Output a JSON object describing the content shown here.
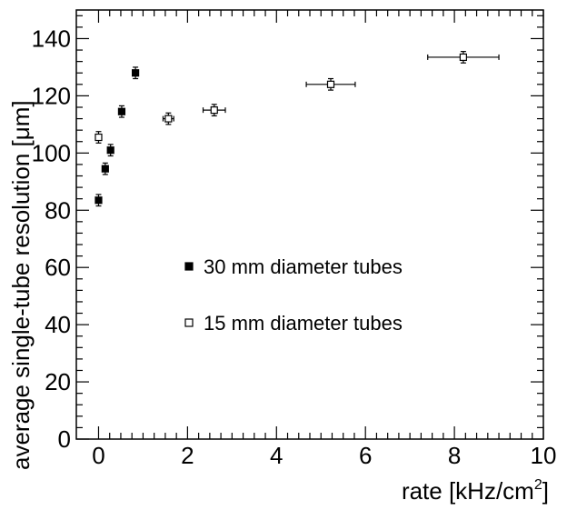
{
  "chart_data": {
    "type": "scatter",
    "xlabel": "rate [kHz/cm",
    "xlabel_superscript": "2",
    "xlabel_suffix": "]",
    "ylabel": "average single-tube resolution [μm]",
    "xlim": [
      -0.5,
      10
    ],
    "ylim": [
      0,
      150
    ],
    "x_ticks": [
      0,
      2,
      4,
      6,
      8,
      10
    ],
    "y_ticks": [
      0,
      20,
      40,
      60,
      80,
      100,
      120,
      140
    ],
    "grid": false,
    "legend_position": "center",
    "series": [
      {
        "name": "30 mm diameter tubes",
        "marker": "filled-square",
        "color": "#000000",
        "points": [
          {
            "x": 0.0,
            "y": 83.5,
            "xerr": 0.0,
            "yerr": 2.0
          },
          {
            "x": 0.15,
            "y": 94.5,
            "xerr": 0.0,
            "yerr": 2.0
          },
          {
            "x": 0.27,
            "y": 101.0,
            "xerr": 0.0,
            "yerr": 2.0
          },
          {
            "x": 0.52,
            "y": 114.5,
            "xerr": 0.0,
            "yerr": 2.0
          },
          {
            "x": 0.83,
            "y": 128.0,
            "xerr": 0.0,
            "yerr": 2.0
          }
        ]
      },
      {
        "name": "15 mm diameter tubes",
        "marker": "open-square",
        "color": "#000000",
        "points": [
          {
            "x": 0.0,
            "y": 105.5,
            "xerr": 0.0,
            "yerr": 2.0
          },
          {
            "x": 1.57,
            "y": 112.0,
            "xerr": 0.12,
            "yerr": 2.0
          },
          {
            "x": 2.6,
            "y": 115.0,
            "xerr": 0.25,
            "yerr": 2.0
          },
          {
            "x": 5.22,
            "y": 124.0,
            "xerr": 0.55,
            "yerr": 2.0
          },
          {
            "x": 8.2,
            "y": 133.5,
            "xerr": 0.8,
            "yerr": 2.0
          }
        ]
      }
    ]
  }
}
